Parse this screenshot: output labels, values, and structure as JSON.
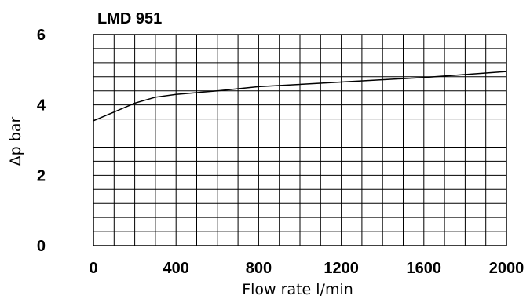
{
  "chart_data": {
    "type": "line",
    "title": "LMD 951",
    "xlabel": "Flow rate l/min",
    "ylabel": "Δp bar",
    "xlim": [
      0,
      2000
    ],
    "ylim": [
      0,
      6
    ],
    "x_ticks": [
      0,
      400,
      800,
      1200,
      1600,
      2000
    ],
    "y_ticks": [
      0,
      2,
      4,
      6
    ],
    "x_tick_labels": [
      "0",
      "400",
      "800",
      "1200",
      "1600",
      "2000"
    ],
    "y_tick_labels": [
      "0",
      "2",
      "4",
      "6"
    ],
    "grid": true,
    "grid_x_step": 100,
    "grid_y_step": 0.4,
    "series": [
      {
        "x": [
          0,
          100,
          200,
          300,
          400,
          600,
          800,
          1200,
          1600,
          2000
        ],
        "y": [
          3.55,
          3.8,
          4.05,
          4.22,
          4.3,
          4.4,
          4.52,
          4.65,
          4.78,
          4.95
        ]
      }
    ]
  }
}
